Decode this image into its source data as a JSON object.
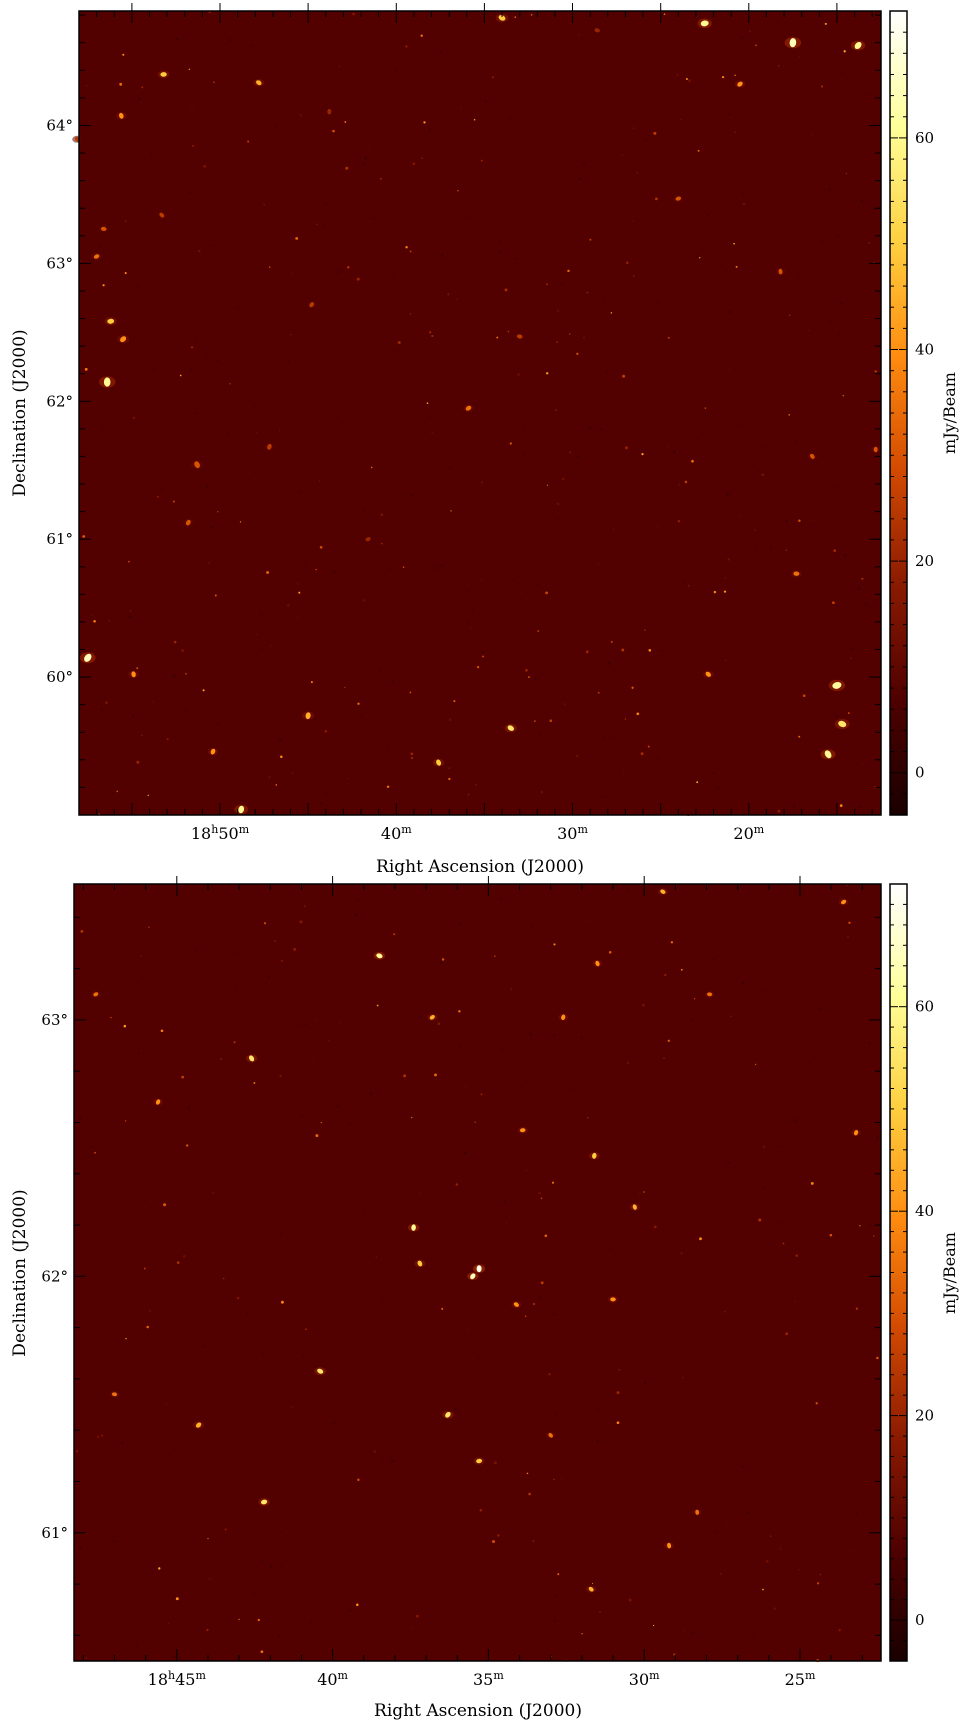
{
  "chart_data": [
    {
      "type": "heatmap",
      "title": "",
      "xlabel": "Right Ascension (J2000)",
      "ylabel": "Declination (J2000)",
      "colorbar_label": "mJy/Beam",
      "colorbar_range": [
        -4,
        72
      ],
      "colorbar_ticks": [
        0,
        20,
        40,
        60
      ],
      "colormap": [
        "#1a0000",
        "#4f0000",
        "#8a1a00",
        "#d24a00",
        "#ff8c10",
        "#ffd040",
        "#ffff9a",
        "#ffffff"
      ],
      "background_color": "#520000",
      "x_unit": "minutes of RA (18h)",
      "x_range_minutes": [
        58.0,
        12.5
      ],
      "x_ticks": [
        {
          "value": 50,
          "label": "18",
          "sup1": "h",
          "mid": "50",
          "sup2": "m"
        },
        {
          "value": 40,
          "label": "",
          "sup1": "",
          "mid": "40",
          "sup2": "m"
        },
        {
          "value": 30,
          "label": "",
          "sup1": "",
          "mid": "30",
          "sup2": "m"
        },
        {
          "value": 20,
          "label": "",
          "sup1": "",
          "mid": "20",
          "sup2": "m"
        }
      ],
      "y_unit": "deg",
      "y_range": [
        59.0,
        64.83
      ],
      "y_ticks": [
        {
          "value": 60,
          "label": "60°"
        },
        {
          "value": 61,
          "label": "61°"
        },
        {
          "value": 62,
          "label": "62°"
        },
        {
          "value": 63,
          "label": "63°"
        },
        {
          "value": 64,
          "label": "64°"
        }
      ],
      "bright_sources": [
        [
          56.4,
          62.14,
          60,
          1.6
        ],
        [
          57.5,
          60.14,
          65,
          1.5
        ],
        [
          15.0,
          59.94,
          62,
          1.6
        ],
        [
          14.7,
          59.66,
          55,
          1.4
        ],
        [
          15.5,
          59.44,
          60,
          1.4
        ],
        [
          17.5,
          64.6,
          65,
          1.6
        ],
        [
          13.8,
          64.58,
          60,
          1.3
        ],
        [
          22.5,
          64.74,
          60,
          1.3
        ],
        [
          34.0,
          64.78,
          50,
          1.1
        ],
        [
          51.3,
          61.54,
          30,
          1.1
        ],
        [
          45.0,
          59.72,
          45,
          1.0
        ],
        [
          55.5,
          62.45,
          40,
          1.0
        ],
        [
          56.2,
          62.58,
          50,
          1.0
        ],
        [
          33.5,
          59.63,
          55,
          1.0
        ],
        [
          37.6,
          59.38,
          50,
          0.9
        ],
        [
          48.8,
          59.04,
          60,
          1.2
        ],
        [
          20.5,
          64.3,
          40,
          0.8
        ],
        [
          53.2,
          64.37,
          50,
          0.9
        ],
        [
          47.8,
          64.31,
          45,
          0.8
        ],
        [
          55.6,
          64.07,
          40,
          0.8
        ],
        [
          47.2,
          61.67,
          25,
          0.8
        ],
        [
          35.9,
          61.95,
          35,
          0.8
        ],
        [
          17.3,
          60.75,
          35,
          0.8
        ],
        [
          22.3,
          60.02,
          40,
          0.8
        ],
        [
          54.9,
          60.02,
          40,
          0.8
        ],
        [
          50.4,
          59.46,
          40,
          0.8
        ],
        [
          57.0,
          63.05,
          35,
          0.7
        ],
        [
          56.6,
          63.25,
          30,
          0.7
        ],
        [
          53.3,
          63.35,
          25,
          0.7
        ],
        [
          18.2,
          62.94,
          30,
          0.7
        ],
        [
          51.8,
          61.12,
          30,
          0.8
        ],
        [
          41.6,
          61.0,
          20,
          0.7
        ],
        [
          33.0,
          62.47,
          25,
          0.7
        ],
        [
          16.4,
          61.6,
          30,
          0.7
        ],
        [
          12.8,
          61.65,
          30,
          0.7
        ],
        [
          44.8,
          62.7,
          25,
          0.7
        ],
        [
          24.0,
          63.47,
          30,
          0.7
        ],
        [
          28.6,
          64.69,
          20,
          0.7
        ],
        [
          58.1,
          63.9,
          25,
          0.7
        ],
        [
          43.8,
          64.1,
          20,
          0.7
        ]
      ],
      "faint_source_count": 520,
      "seed": 7
    },
    {
      "type": "heatmap",
      "title": "",
      "xlabel": "Right Ascension (J2000)",
      "ylabel": "Declination (J2000)",
      "colorbar_label": "mJy/Beam",
      "colorbar_range": [
        -4,
        72
      ],
      "colorbar_ticks": [
        0,
        20,
        40,
        60
      ],
      "colormap": [
        "#1a0000",
        "#4f0000",
        "#8a1a00",
        "#d24a00",
        "#ff8c10",
        "#ffd040",
        "#ffff9a",
        "#ffffff"
      ],
      "background_color": "#520000",
      "x_unit": "minutes of RA (18h)",
      "x_range_minutes": [
        48.3,
        22.4
      ],
      "x_ticks": [
        {
          "value": 45,
          "label": "18",
          "sup1": "h",
          "mid": "45",
          "sup2": "m"
        },
        {
          "value": 40,
          "label": "",
          "sup1": "",
          "mid": "40",
          "sup2": "m"
        },
        {
          "value": 35,
          "label": "",
          "sup1": "",
          "mid": "35",
          "sup2": "m"
        },
        {
          "value": 30,
          "label": "",
          "sup1": "",
          "mid": "30",
          "sup2": "m"
        },
        {
          "value": 25,
          "label": "",
          "sup1": "",
          "mid": "25",
          "sup2": "m"
        }
      ],
      "y_unit": "deg",
      "y_range": [
        60.5,
        63.53
      ],
      "y_ticks": [
        {
          "value": 61,
          "label": "61°"
        },
        {
          "value": 62,
          "label": "62°"
        },
        {
          "value": 63,
          "label": "63°"
        }
      ],
      "bright_sources": [
        [
          35.3,
          62.03,
          70,
          1.0
        ],
        [
          35.5,
          62.0,
          65,
          0.9
        ],
        [
          42.2,
          61.12,
          55,
          0.9
        ],
        [
          38.5,
          63.25,
          60,
          0.9
        ],
        [
          42.6,
          62.85,
          55,
          0.9
        ],
        [
          37.4,
          62.19,
          60,
          0.9
        ],
        [
          36.3,
          61.46,
          55,
          0.9
        ],
        [
          35.3,
          61.28,
          50,
          0.8
        ],
        [
          40.4,
          61.63,
          55,
          0.9
        ],
        [
          37.2,
          62.05,
          50,
          0.8
        ],
        [
          31.6,
          62.47,
          50,
          0.8
        ],
        [
          44.3,
          61.42,
          45,
          0.8
        ],
        [
          33.9,
          62.57,
          40,
          0.7
        ],
        [
          29.4,
          63.5,
          45,
          0.7
        ],
        [
          31.5,
          63.22,
          40,
          0.7
        ],
        [
          32.6,
          63.01,
          40,
          0.7
        ],
        [
          36.8,
          63.01,
          45,
          0.7
        ],
        [
          31.0,
          61.91,
          40,
          0.7
        ],
        [
          34.1,
          61.89,
          40,
          0.7
        ],
        [
          30.3,
          62.27,
          45,
          0.7
        ],
        [
          23.2,
          62.56,
          40,
          0.7
        ],
        [
          23.6,
          63.46,
          40,
          0.7
        ],
        [
          27.9,
          63.1,
          35,
          0.6
        ],
        [
          31.7,
          60.78,
          45,
          0.7
        ],
        [
          29.2,
          60.95,
          40,
          0.7
        ],
        [
          45.6,
          62.68,
          40,
          0.7
        ],
        [
          47.6,
          63.1,
          35,
          0.6
        ],
        [
          47.0,
          61.54,
          35,
          0.6
        ],
        [
          33.0,
          61.38,
          35,
          0.6
        ],
        [
          28.3,
          61.08,
          35,
          0.6
        ]
      ],
      "faint_source_count": 330,
      "seed": 23
    }
  ]
}
